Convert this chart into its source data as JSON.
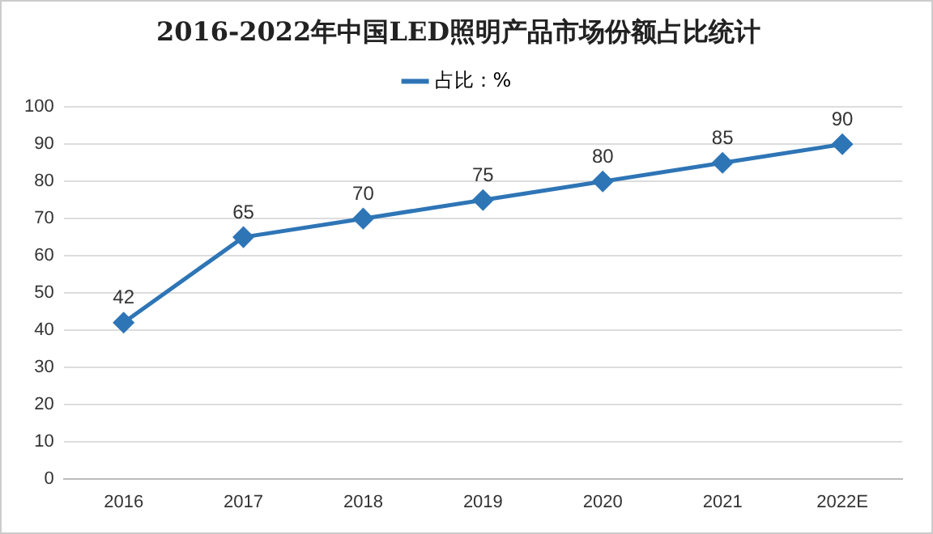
{
  "chart_data": {
    "type": "line",
    "title": "2016-2022年中国LED照明产品市场份额占比统计",
    "categories": [
      "2016",
      "2017",
      "2018",
      "2019",
      "2020",
      "2021",
      "2022E"
    ],
    "series": [
      {
        "name": "占比：%",
        "color": "#2e75b6",
        "values": [
          42,
          65,
          70,
          75,
          80,
          85,
          90
        ]
      }
    ],
    "ylim": [
      0,
      100
    ],
    "yticks": [
      0,
      10,
      20,
      30,
      40,
      50,
      60,
      70,
      80,
      90,
      100
    ],
    "grid": "y",
    "legend": "top",
    "marker": "diamond",
    "line_style": "solid",
    "data_labels": true
  }
}
